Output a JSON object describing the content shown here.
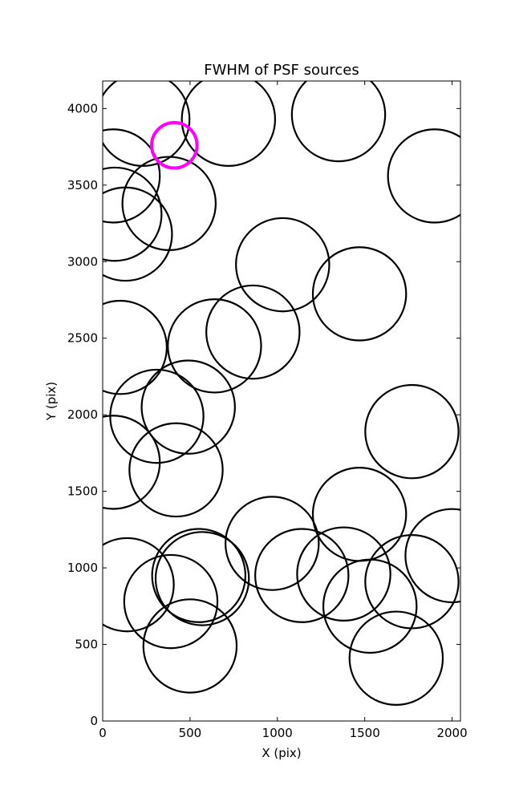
{
  "chart_data": {
    "type": "scatter",
    "title": "FWHM of PSF sources",
    "xlabel": "X (pix)",
    "ylabel": "Y (pix)",
    "xlim": [
      0,
      2048
    ],
    "ylim": [
      0,
      4180
    ],
    "xticks": [
      0,
      500,
      1000,
      1500,
      2000
    ],
    "yticks": [
      0,
      500,
      1000,
      1500,
      2000,
      2500,
      3000,
      3500,
      4000
    ],
    "grid": false,
    "legend": "none",
    "series": [
      {
        "marker": "open-circle",
        "color": "#000000",
        "radius_data_units": 267,
        "points": [
          {
            "x": 230,
            "y": 3930
          },
          {
            "x": 720,
            "y": 3930
          },
          {
            "x": 1350,
            "y": 3960
          },
          {
            "x": 1900,
            "y": 3560
          },
          {
            "x": 60,
            "y": 3560
          },
          {
            "x": 70,
            "y": 3310
          },
          {
            "x": 380,
            "y": 3380
          },
          {
            "x": 130,
            "y": 3180
          },
          {
            "x": 1030,
            "y": 2980
          },
          {
            "x": 1470,
            "y": 2790
          },
          {
            "x": 100,
            "y": 2440
          },
          {
            "x": 640,
            "y": 2450
          },
          {
            "x": 860,
            "y": 2540
          },
          {
            "x": 490,
            "y": 2050
          },
          {
            "x": 310,
            "y": 1990
          },
          {
            "x": 1770,
            "y": 1890
          },
          {
            "x": 60,
            "y": 1690
          },
          {
            "x": 420,
            "y": 1640
          },
          {
            "x": 1470,
            "y": 1350
          },
          {
            "x": 2000,
            "y": 1080
          },
          {
            "x": 970,
            "y": 1160
          },
          {
            "x": 140,
            "y": 890
          },
          {
            "x": 570,
            "y": 930
          },
          {
            "x": 550,
            "y": 950
          },
          {
            "x": 1140,
            "y": 950
          },
          {
            "x": 1380,
            "y": 960
          },
          {
            "x": 1770,
            "y": 910
          },
          {
            "x": 1530,
            "y": 750
          },
          {
            "x": 390,
            "y": 780
          },
          {
            "x": 500,
            "y": 490
          },
          {
            "x": 1680,
            "y": 410
          }
        ]
      },
      {
        "marker": "open-circle",
        "color": "#ff00ff",
        "radius_data_units": 130,
        "points": [
          {
            "x": 410,
            "y": 3760
          }
        ]
      }
    ]
  }
}
